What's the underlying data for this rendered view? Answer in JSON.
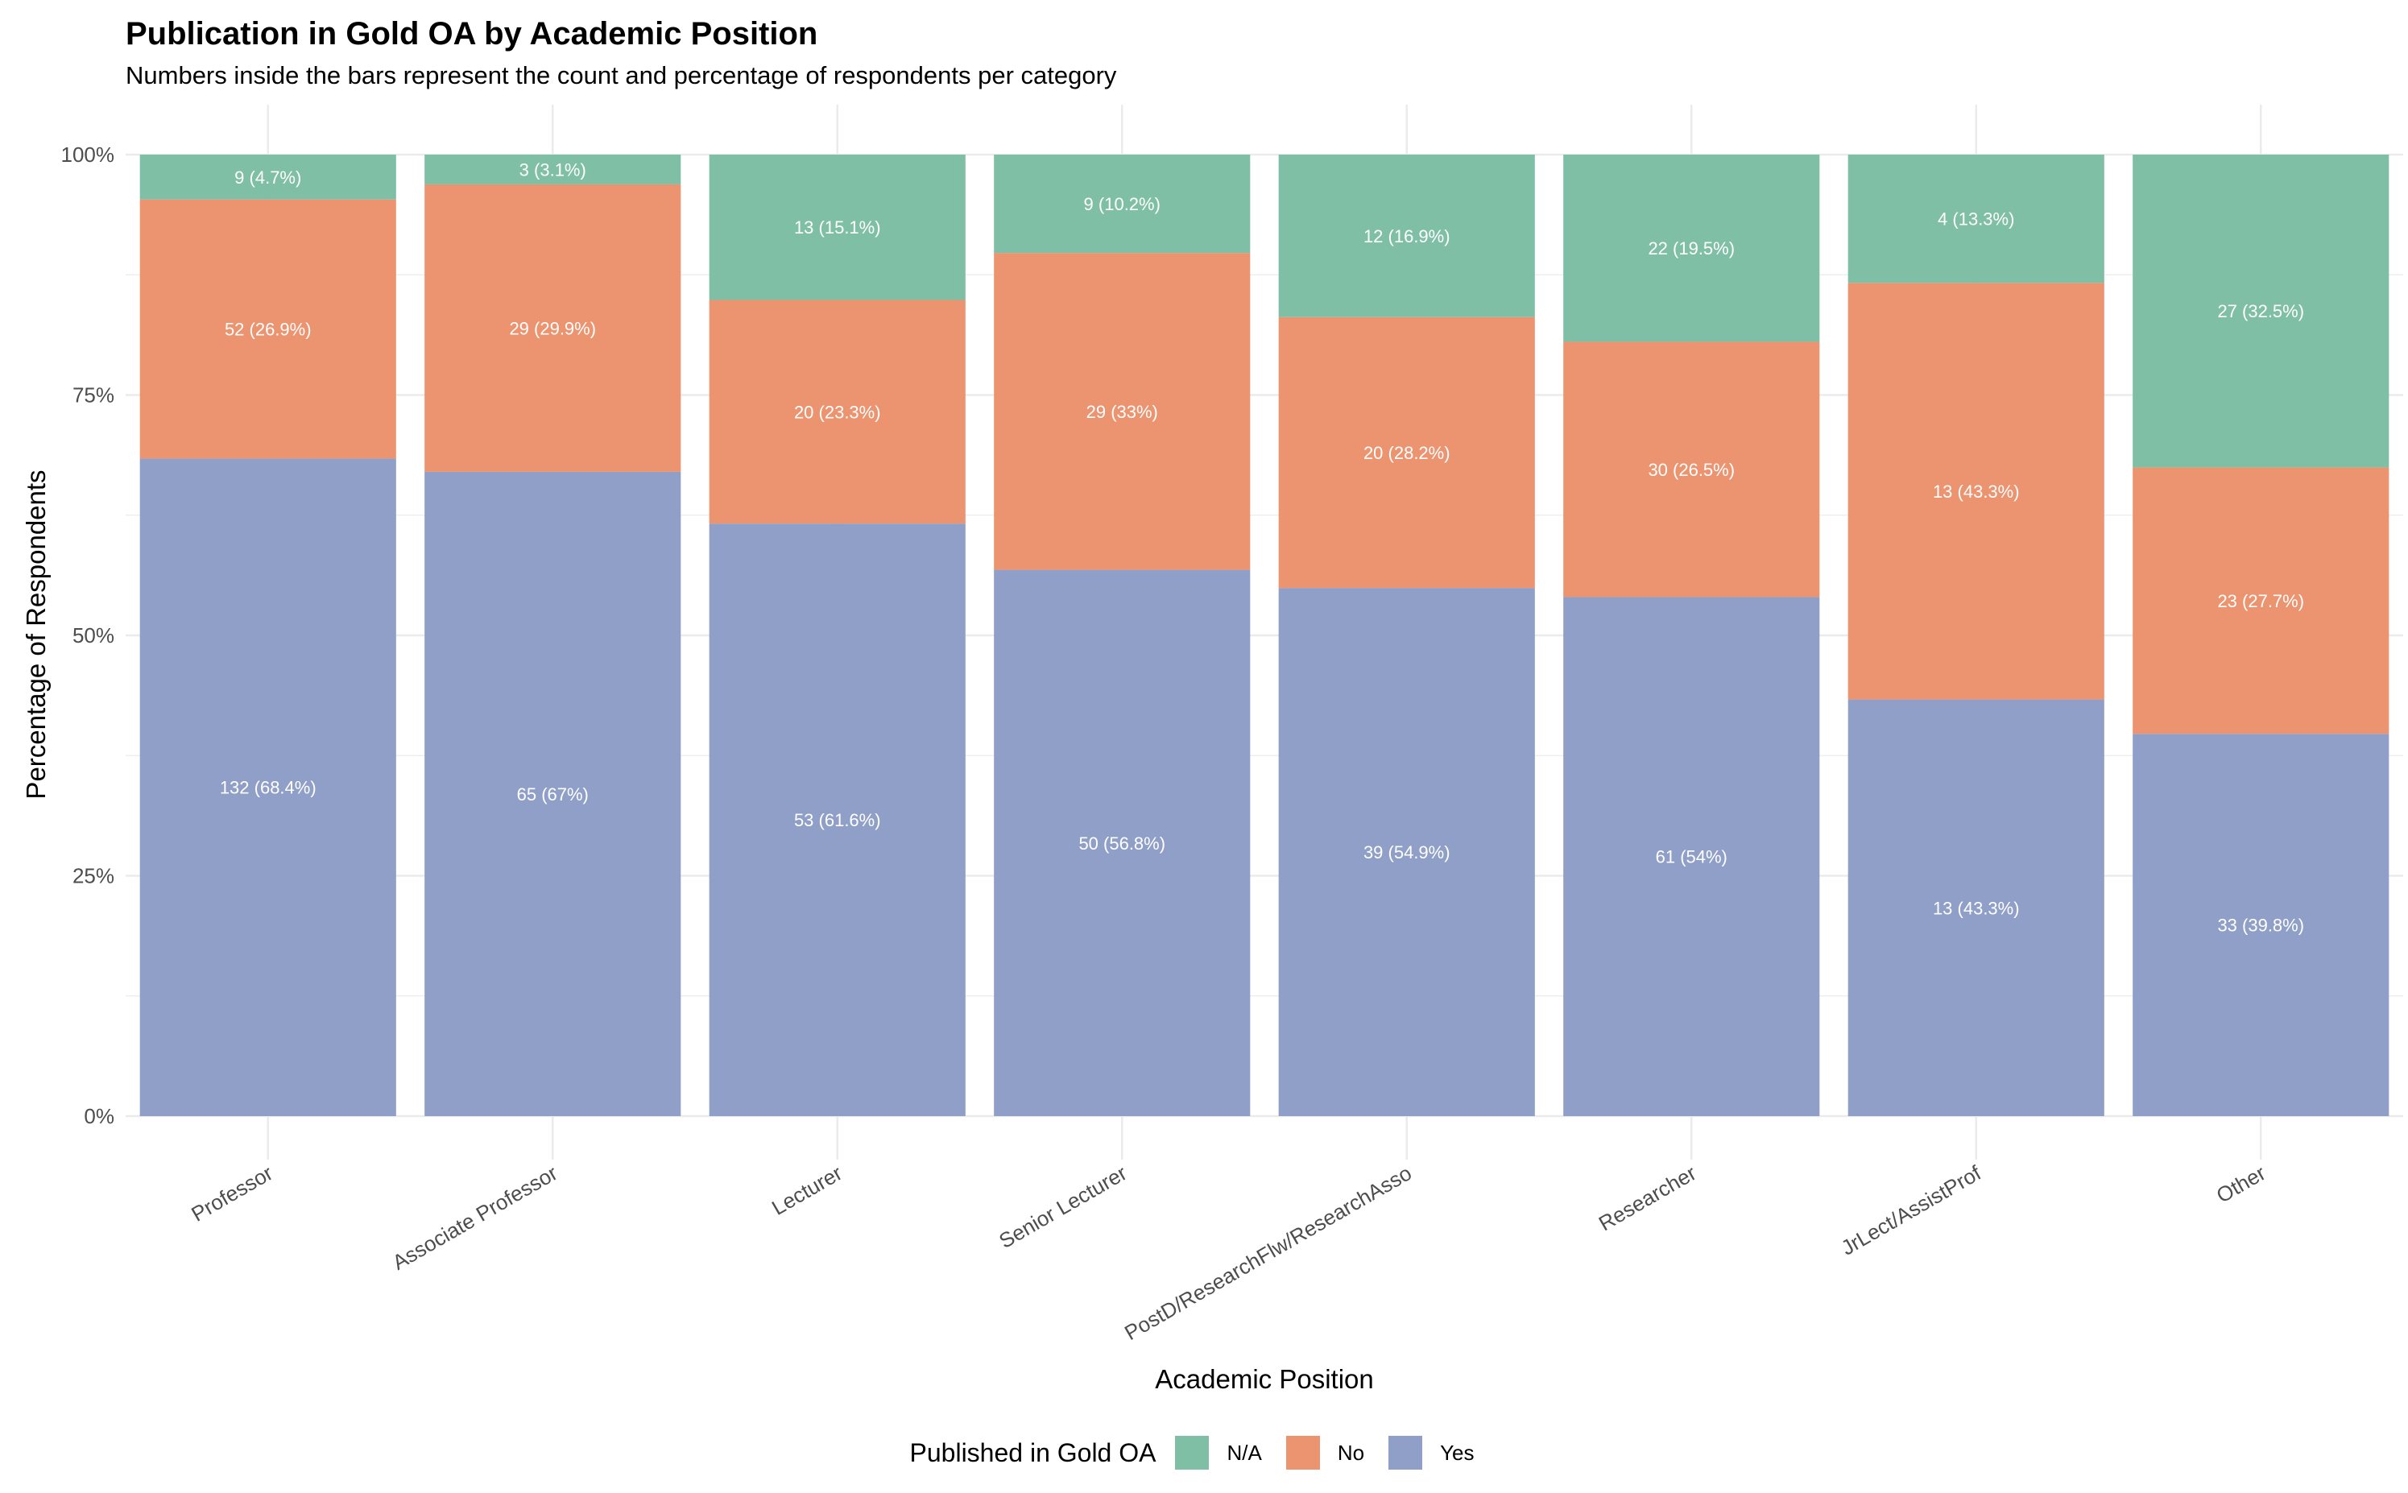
{
  "chart_data": {
    "type": "bar",
    "stacked": true,
    "normalized": true,
    "title": "Publication in Gold OA by Academic Position",
    "subtitle": "Numbers inside the bars represent the count and percentage of respondents per category",
    "xlabel": "Academic Position",
    "ylabel": "Percentage of Respondents",
    "ylim": [
      0,
      1
    ],
    "yticks": [
      "0%",
      "25%",
      "50%",
      "75%",
      "100%"
    ],
    "categories": [
      "Professor",
      "Associate Professor",
      "Lecturer",
      "Senior Lecturer",
      "PostD/ResearchFlw/ResearchAsso",
      "Researcher",
      "JrLect/AssistProf",
      "Other"
    ],
    "legend_title": "Published in Gold OA",
    "legend_position": "bottom",
    "series": [
      {
        "name": "Yes",
        "color": "#8f9fc7",
        "counts": [
          132,
          65,
          53,
          50,
          39,
          61,
          13,
          33
        ],
        "percents": [
          68.4,
          67,
          61.6,
          56.8,
          54.9,
          54,
          43.3,
          39.8
        ],
        "labels": [
          "132 (68.4%)",
          "65 (67%)",
          "53 (61.6%)",
          "50 (56.8%)",
          "39 (54.9%)",
          "61 (54%)",
          "13 (43.3%)",
          "33 (39.8%)"
        ]
      },
      {
        "name": "No",
        "color": "#ec9370",
        "counts": [
          52,
          29,
          20,
          29,
          20,
          30,
          13,
          23
        ],
        "percents": [
          26.9,
          29.9,
          23.3,
          33,
          28.2,
          26.5,
          43.3,
          27.7
        ],
        "labels": [
          "52 (26.9%)",
          "29 (29.9%)",
          "20 (23.3%)",
          "29 (33%)",
          "20 (28.2%)",
          "30 (26.5%)",
          "13 (43.3%)",
          "23 (27.7%)"
        ]
      },
      {
        "name": "N/A",
        "color": "#7fbfa5",
        "counts": [
          9,
          3,
          13,
          9,
          12,
          22,
          4,
          27
        ],
        "percents": [
          4.7,
          3.1,
          15.1,
          10.2,
          16.9,
          19.5,
          13.3,
          32.5
        ],
        "labels": [
          "9 (4.7%)",
          "3 (3.1%)",
          "13 (15.1%)",
          "9 (10.2%)",
          "12 (16.9%)",
          "22 (19.5%)",
          "4 (13.3%)",
          "27 (32.5%)"
        ]
      }
    ],
    "legend_order": [
      "N/A",
      "No",
      "Yes"
    ],
    "grid": true
  }
}
